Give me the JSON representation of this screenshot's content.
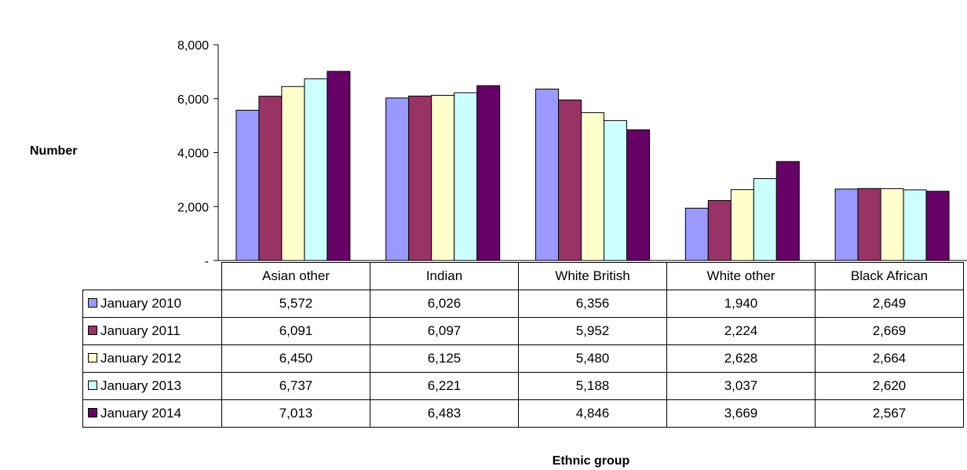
{
  "chart_data": {
    "type": "bar",
    "ylabel": "Number",
    "xlabel": "Ethnic group",
    "ylim": [
      0,
      8000
    ],
    "yticks": [
      {
        "value": 8000,
        "label": "8,000"
      },
      {
        "value": 6000,
        "label": "6,000"
      },
      {
        "value": 4000,
        "label": "4,000"
      },
      {
        "value": 2000,
        "label": "2,000"
      },
      {
        "value": 0,
        "label": "-"
      }
    ],
    "grid": false,
    "legend": "table-rows",
    "categories": [
      "Asian other",
      "Indian",
      "White British",
      "White other",
      "Black African"
    ],
    "series": [
      {
        "name": "January 2010",
        "color": "#9999ff",
        "values": [
          5572,
          6026,
          6356,
          1940,
          2649
        ],
        "labels": [
          "5,572",
          "6,026",
          "6,356",
          "1,940",
          "2,649"
        ]
      },
      {
        "name": "January 2011",
        "color": "#993366",
        "values": [
          6091,
          6097,
          5952,
          2224,
          2669
        ],
        "labels": [
          "6,091",
          "6,097",
          "5,952",
          "2,224",
          "2,669"
        ]
      },
      {
        "name": "January 2012",
        "color": "#ffffcc",
        "values": [
          6450,
          6125,
          5480,
          2628,
          2664
        ],
        "labels": [
          "6,450",
          "6,125",
          "5,480",
          "2,628",
          "2,664"
        ]
      },
      {
        "name": "January 2013",
        "color": "#ccffff",
        "values": [
          6737,
          6221,
          5188,
          3037,
          2620
        ],
        "labels": [
          "6,737",
          "6,221",
          "5,188",
          "3,037",
          "2,620"
        ]
      },
      {
        "name": "January 2014",
        "color": "#660066",
        "values": [
          7013,
          6483,
          4846,
          3669,
          2567
        ],
        "labels": [
          "7,013",
          "6,483",
          "4,846",
          "3,669",
          "2,567"
        ]
      }
    ]
  }
}
